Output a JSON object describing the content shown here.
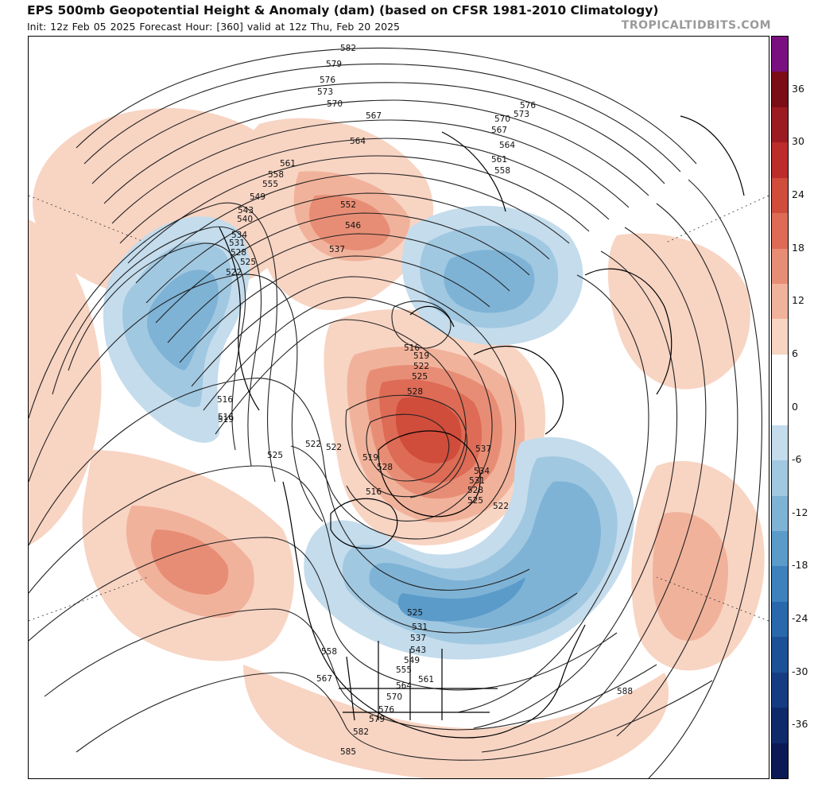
{
  "header": {
    "title": "EPS 500mb Geopotential Height & Anomaly (dam) (based on CFSR 1981-2010 Climatology)",
    "subtitle": "Init: 12z Feb 05 2025   Forecast Hour: [360]   valid at 12z Thu, Feb 20 2025",
    "brand": "TROPICALTIDBITS.COM"
  },
  "map": {
    "projection": "polar stereographic, North Pole centered",
    "height_contour_labels": [
      "582",
      "579",
      "576",
      "573",
      "570",
      "567",
      "564",
      "561",
      "558",
      "555",
      "552",
      "549",
      "546",
      "543",
      "540",
      "537",
      "534",
      "531",
      "528",
      "525",
      "522",
      "519",
      "516",
      "588",
      "585"
    ],
    "anomaly_features": [
      {
        "region": "Arctic / Greenland",
        "sign": "positive",
        "peak_dam": 24
      },
      {
        "region": "North Atlantic / eastern Canada",
        "sign": "negative",
        "peak_dam": -18
      },
      {
        "region": "central and eastern United States",
        "sign": "negative",
        "peak_dam": -18
      },
      {
        "region": "Siberia",
        "sign": "negative",
        "peak_dam": -12
      },
      {
        "region": "North Pacific / East Asia",
        "sign": "negative",
        "peak_dam": -12
      },
      {
        "region": "Alaska / Bering Sea",
        "sign": "positive",
        "peak_dam": 12
      },
      {
        "region": "North Pacific south of Aleutians",
        "sign": "positive",
        "peak_dam": 12
      },
      {
        "region": "Eastern Europe",
        "sign": "positive",
        "peak_dam": 9
      },
      {
        "region": "Eastern Atlantic",
        "sign": "positive",
        "peak_dam": 9
      }
    ]
  },
  "colorbar": {
    "ticks": [
      "36",
      "30",
      "24",
      "18",
      "12",
      "6",
      "0",
      "-6",
      "-12",
      "-18",
      "-24",
      "-30",
      "-36"
    ],
    "colors": [
      "#7a1080",
      "#7b0d16",
      "#9c1b21",
      "#bc2c2a",
      "#d04c3b",
      "#dd6b55",
      "#e88d75",
      "#f1b29b",
      "#f8d4c3",
      "#ffffff",
      "#ffffff",
      "#c4dcec",
      "#a1c8e1",
      "#7eb3d6",
      "#5a9bca",
      "#3d82bd",
      "#2968ac",
      "#1c5198",
      "#153c82",
      "#0f2a6b",
      "#0b1a55"
    ]
  }
}
